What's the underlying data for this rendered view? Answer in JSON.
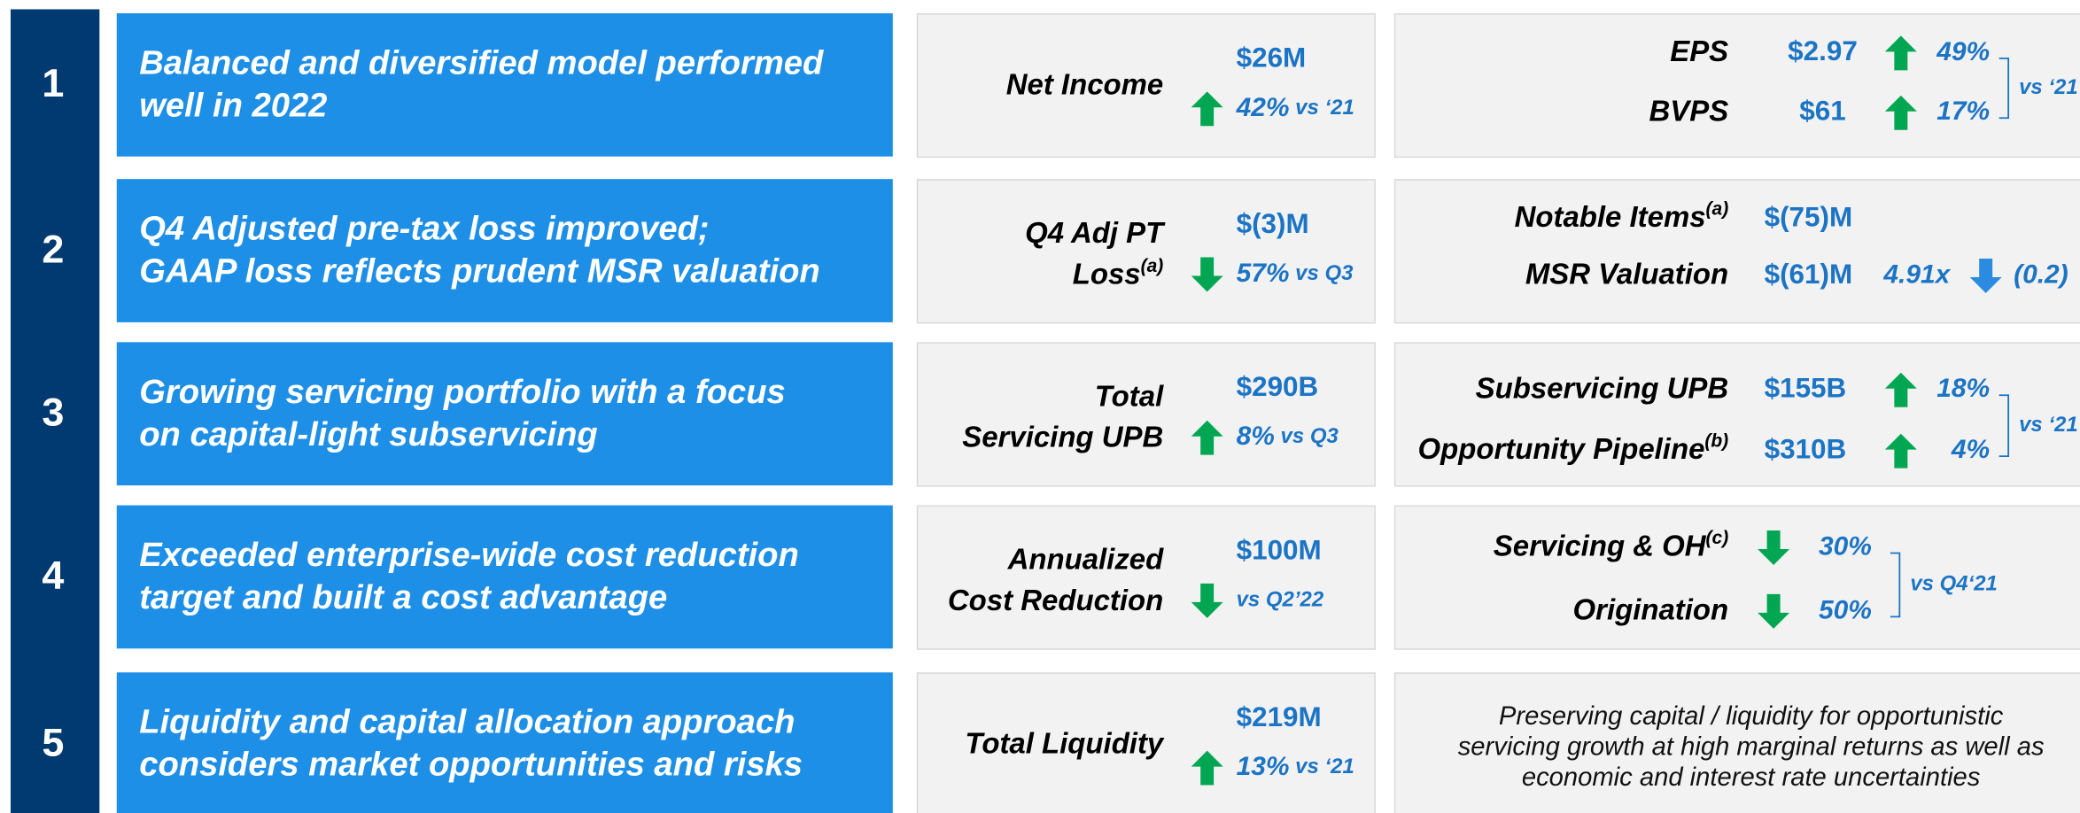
{
  "rows": [
    {
      "number": "1",
      "headline": [
        "Balanced and diversified model performed",
        "well in 2022"
      ],
      "metric": {
        "label": [
          "Net Income"
        ],
        "value": "$26M",
        "arrow": {
          "direction": "up",
          "color": "#00a651"
        },
        "pct": "42%",
        "vs": "vs ‘21"
      },
      "details": {
        "items": [
          {
            "label": "EPS",
            "value": "$2.97",
            "arrow": {
              "direction": "up",
              "color": "#00a651"
            },
            "pct": "49%"
          },
          {
            "label": "BVPS",
            "value": "$61",
            "arrow": {
              "direction": "up",
              "color": "#00a651"
            },
            "pct": "17%"
          }
        ],
        "vs": "vs ‘21"
      }
    },
    {
      "number": "2",
      "headline": [
        "Q4 Adjusted pre-tax loss improved;",
        "GAAP loss reflects prudent MSR valuation"
      ],
      "metric": {
        "label": [
          "Q4 Adj PT",
          "Loss"
        ],
        "sup": "(a)",
        "value": "$(3)M",
        "arrow": {
          "direction": "down",
          "color": "#00a651"
        },
        "pct": "57%",
        "vs": "vs Q3"
      },
      "details": {
        "items": [
          {
            "label": "Notable Items",
            "sup": "(a)",
            "value": "$(75)M"
          },
          {
            "label": "MSR Valuation",
            "value": "$(61)M",
            "multiple": "4.91x",
            "arrow": {
              "direction": "down",
              "color": "#2a8be0"
            },
            "change": "(0.2)"
          }
        ]
      }
    },
    {
      "number": "3",
      "headline": [
        "Growing servicing portfolio with a focus",
        "on capital-light subservicing"
      ],
      "metric": {
        "label": [
          "Total",
          "Servicing UPB"
        ],
        "value": "$290B",
        "arrow": {
          "direction": "up",
          "color": "#00a651"
        },
        "pct": "8%",
        "vs": "vs Q3"
      },
      "details": {
        "items": [
          {
            "label": "Subservicing UPB",
            "value": "$155B",
            "arrow": {
              "direction": "up",
              "color": "#00a651"
            },
            "pct": "18%"
          },
          {
            "label": "Opportunity Pipeline",
            "sup": "(b)",
            "value": "$310B",
            "arrow": {
              "direction": "up",
              "color": "#00a651"
            },
            "pct": "4%"
          }
        ],
        "vs": "vs ‘21"
      }
    },
    {
      "number": "4",
      "headline": [
        "Exceeded enterprise-wide cost reduction",
        "target and built a cost advantage"
      ],
      "metric": {
        "label": [
          "Annualized",
          "Cost Reduction"
        ],
        "value": "$100M",
        "arrow": {
          "direction": "down",
          "color": "#00a651"
        },
        "vs": "vs Q2’22"
      },
      "details": {
        "items": [
          {
            "label": "Servicing & OH",
            "sup": "(c)",
            "arrow": {
              "direction": "down",
              "color": "#00a651"
            },
            "pct": "30%"
          },
          {
            "label": "Origination",
            "arrow": {
              "direction": "down",
              "color": "#00a651"
            },
            "pct": "50%"
          }
        ],
        "vs": "vs Q4‘21"
      }
    },
    {
      "number": "5",
      "headline": [
        "Liquidity and capital allocation approach",
        "considers market opportunities and risks"
      ],
      "metric": {
        "label": [
          "Total Liquidity"
        ],
        "value": "$219M",
        "arrow": {
          "direction": "up",
          "color": "#00a651"
        },
        "pct": "13%",
        "vs": "vs ‘21"
      },
      "details": {
        "text": [
          "Preserving capital / liquidity for opportunistic",
          "servicing growth at high marginal returns as well as",
          "economic and interest rate uncertainties"
        ]
      }
    }
  ]
}
